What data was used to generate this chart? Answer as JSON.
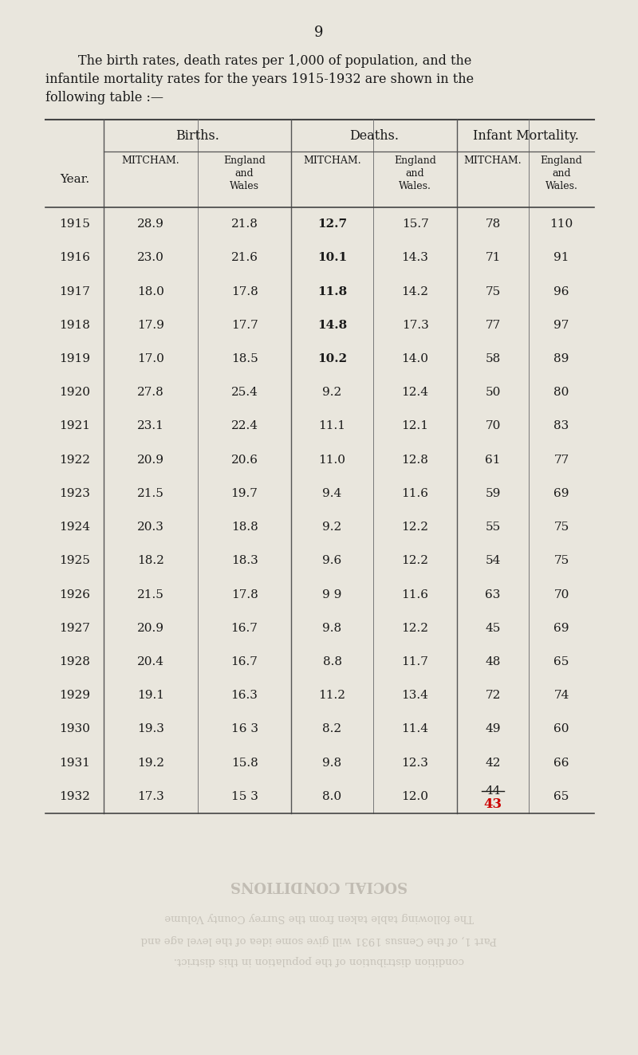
{
  "page_number": "9",
  "intro_line1": "        The birth rates, death rates per 1,000 of population, and the",
  "intro_line2": "infantile mortality rates for the years 1915-1932 are shown in the",
  "intro_line3": "following table :—",
  "year_label": "Year.",
  "group_headers": [
    "Births.",
    "Deaths.",
    "Infant Mortality."
  ],
  "subheaders_mitcham": [
    "MITCHAM.",
    "MITCHAM.",
    "MITCHAM."
  ],
  "subheaders_ew": [
    "England\nand\nWales",
    "England\nand\nWales.",
    "England\nand\nWales."
  ],
  "years": [
    1915,
    1916,
    1917,
    1918,
    1919,
    1920,
    1921,
    1922,
    1923,
    1924,
    1925,
    1926,
    1927,
    1928,
    1929,
    1930,
    1931,
    1932
  ],
  "births_mitcham": [
    "28.9",
    "23.0",
    "18.0",
    "17.9",
    "17.0",
    "27.8",
    "23.1",
    "20.9",
    "21.5",
    "20.3",
    "18.2",
    "21.5",
    "20.9",
    "20.4",
    "19.1",
    "19.3",
    "19.2",
    "17.3"
  ],
  "births_ew": [
    "21.8",
    "21.6",
    "17.8",
    "17.7",
    "18.5",
    "25.4",
    "22.4",
    "20.6",
    "19.7",
    "18.8",
    "18.3",
    "17.8",
    "16.7",
    "16.7",
    "16.3",
    "16 3",
    "15.8",
    "15 3"
  ],
  "deaths_mitcham": [
    "12.7",
    "10.1",
    "11.8",
    "14.8",
    "10.2",
    "9.2",
    "11.1",
    "11.0",
    "9.4",
    "9.2",
    "9.6",
    "9 9",
    "9.8",
    "8.8",
    "11.2",
    "8.2",
    "9.8",
    "8.0"
  ],
  "deaths_ew": [
    "15.7",
    "14.3",
    "14.2",
    "17.3",
    "14.0",
    "12.4",
    "12.1",
    "12.8",
    "11.6",
    "12.2",
    "12.2",
    "11.6",
    "12.2",
    "11.7",
    "13.4",
    "11.4",
    "12.3",
    "12.0"
  ],
  "infant_mitcham": [
    "78",
    "71",
    "75",
    "77",
    "58",
    "50",
    "70",
    "61",
    "59",
    "55",
    "54",
    "63",
    "45",
    "48",
    "72",
    "49",
    "42",
    "44"
  ],
  "infant_ew": [
    "110",
    "91",
    "96",
    "97",
    "89",
    "80",
    "83",
    "77",
    "69",
    "75",
    "75",
    "70",
    "69",
    "65",
    "74",
    "60",
    "66",
    "65"
  ],
  "deaths_mitcham_bold": [
    true,
    true,
    true,
    true,
    true,
    false,
    false,
    false,
    false,
    false,
    false,
    false,
    false,
    false,
    false,
    false,
    false,
    false
  ],
  "bg_color": "#e9e6dd",
  "text_color": "#1a1a1a",
  "footer_heading": "SOCIAL CONDITIONS",
  "footer_line1": "The following table taken from the Surrey County Volume",
  "footer_line2": "Part 1, of the Census 1931 will give some idea of the level age and",
  "footer_line3": "condition distribution of the population in this district."
}
